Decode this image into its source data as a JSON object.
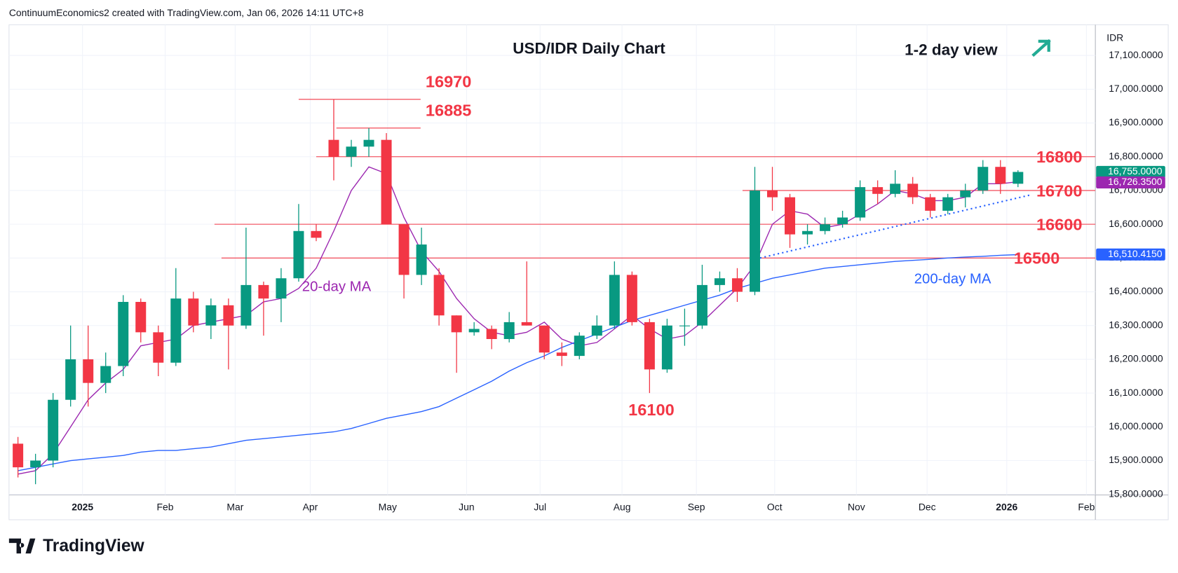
{
  "header": "ContinuumEconomics2 created with TradingView.com, Jan 06, 2026 14:11 UTC+8",
  "logo": "TradingView",
  "chart_data": {
    "type": "candlestick",
    "title": "USD/IDR Daily Chart",
    "subtitle": "1-2 day view",
    "y_axis_label": "IDR",
    "up_color": "#089981",
    "down_color": "#f23645",
    "grid": true,
    "categories": [
      null,
      null,
      null,
      null,
      null,
      null,
      null,
      null,
      null,
      null,
      null,
      null,
      null,
      null,
      null,
      null,
      null,
      null,
      null,
      null,
      null,
      null,
      null,
      null,
      null,
      null,
      null,
      null,
      null,
      null,
      null,
      null,
      null,
      null,
      null,
      null,
      null,
      null,
      null,
      null,
      null,
      null,
      null,
      null,
      null,
      null,
      null,
      null,
      null,
      null,
      null,
      null,
      null,
      null,
      null,
      null,
      null,
      null
    ],
    "candles": [
      [
        15950,
        15970,
        15850,
        15880
      ],
      [
        15880,
        15920,
        15830,
        15900
      ],
      [
        15900,
        16100,
        15880,
        16080
      ],
      [
        16080,
        16300,
        16060,
        16200
      ],
      [
        16200,
        16300,
        16060,
        16130
      ],
      [
        16130,
        16220,
        16100,
        16180
      ],
      [
        16180,
        16390,
        16150,
        16370
      ],
      [
        16370,
        16380,
        16250,
        16280
      ],
      [
        16280,
        16300,
        16150,
        16190
      ],
      [
        16190,
        16470,
        16180,
        16380
      ],
      [
        16380,
        16400,
        16280,
        16300
      ],
      [
        16300,
        16380,
        16260,
        16360
      ],
      [
        16360,
        16380,
        16170,
        16300
      ],
      [
        16300,
        16590,
        16290,
        16420
      ],
      [
        16420,
        16430,
        16270,
        16380
      ],
      [
        16380,
        16470,
        16310,
        16440
      ],
      [
        16440,
        16660,
        16430,
        16580
      ],
      [
        16580,
        16600,
        16550,
        16560
      ],
      [
        16850,
        16970,
        16730,
        16800
      ],
      [
        16800,
        16850,
        16770,
        16830
      ],
      [
        16830,
        16885,
        16800,
        16850
      ],
      [
        16850,
        16870,
        16600,
        16600
      ],
      [
        16600,
        16600,
        16380,
        16450
      ],
      [
        16450,
        16590,
        16420,
        16540
      ],
      [
        16450,
        16470,
        16300,
        16330
      ],
      [
        16330,
        16330,
        16160,
        16280
      ],
      [
        16280,
        16310,
        16270,
        16290
      ],
      [
        16290,
        16300,
        16230,
        16260
      ],
      [
        16260,
        16340,
        16250,
        16310
      ],
      [
        16310,
        16490,
        16300,
        16300
      ],
      [
        16300,
        16300,
        16200,
        16220
      ],
      [
        16220,
        16250,
        16180,
        16210
      ],
      [
        16210,
        16280,
        16200,
        16270
      ],
      [
        16270,
        16330,
        16260,
        16300
      ],
      [
        16300,
        16490,
        16290,
        16450
      ],
      [
        16450,
        16460,
        16300,
        16310
      ],
      [
        16310,
        16320,
        16100,
        16170
      ],
      [
        16170,
        16320,
        16160,
        16300
      ],
      [
        16300,
        16350,
        16240,
        16300
      ],
      [
        16300,
        16480,
        16290,
        16420
      ],
      [
        16420,
        16460,
        16400,
        16440
      ],
      [
        16440,
        16470,
        16370,
        16400
      ],
      [
        16400,
        16770,
        16390,
        16700
      ],
      [
        16700,
        16770,
        16640,
        16680
      ],
      [
        16680,
        16690,
        16530,
        16570
      ],
      [
        16570,
        16600,
        16540,
        16580
      ],
      [
        16580,
        16620,
        16570,
        16600
      ],
      [
        16600,
        16640,
        16590,
        16620
      ],
      [
        16620,
        16730,
        16610,
        16710
      ],
      [
        16710,
        16730,
        16660,
        16690
      ],
      [
        16690,
        16760,
        16680,
        16720
      ],
      [
        16720,
        16740,
        16660,
        16680
      ],
      [
        16680,
        16690,
        16620,
        16640
      ],
      [
        16640,
        16690,
        16630,
        16680
      ],
      [
        16680,
        16720,
        16650,
        16700
      ],
      [
        16700,
        16790,
        16690,
        16770
      ],
      [
        16770,
        16790,
        16690,
        16720
      ],
      [
        16720,
        16760,
        16710,
        16755
      ]
    ],
    "series": [
      {
        "name": "20-day MA",
        "color": "#9c27b0",
        "values": [
          15860,
          15870,
          15920,
          16000,
          16080,
          16130,
          16170,
          16240,
          16250,
          16260,
          16300,
          16310,
          16320,
          16330,
          16370,
          16380,
          16410,
          16470,
          16580,
          16700,
          16770,
          16750,
          16620,
          16520,
          16460,
          16380,
          16320,
          16280,
          16270,
          16280,
          16310,
          16260,
          16240,
          16250,
          16290,
          16330,
          16290,
          16260,
          16270,
          16310,
          16360,
          16410,
          16480,
          16600,
          16640,
          16630,
          16590,
          16600,
          16630,
          16660,
          16700,
          16690,
          16670,
          16670,
          16680,
          16720,
          16720,
          16726
        ]
      },
      {
        "name": "200-day MA",
        "color": "#2962ff",
        "values": [
          15870,
          15880,
          15890,
          15900,
          15905,
          15910,
          15915,
          15925,
          15930,
          15930,
          15935,
          15940,
          15950,
          15960,
          15965,
          15970,
          15975,
          15980,
          15985,
          15995,
          16010,
          16025,
          16035,
          16045,
          16060,
          16085,
          16110,
          16135,
          16165,
          16190,
          16210,
          16235,
          16255,
          16275,
          16295,
          16315,
          16330,
          16345,
          16360,
          16375,
          16390,
          16410,
          16425,
          16440,
          16450,
          16460,
          16470,
          16475,
          16480,
          16485,
          16490,
          16493,
          16496,
          16500,
          16503,
          16505,
          16508,
          16510
        ]
      }
    ],
    "levels": [
      16970,
      16885,
      16800,
      16700,
      16600,
      16500
    ],
    "annotation": 16100,
    "trendline": [
      16494,
      16686
    ],
    "price_labels": [
      {
        "value": 16755,
        "label": "16,755.0000",
        "color": "#089981"
      },
      {
        "value": 16726.35,
        "label": "16,726.3500",
        "color": "#9c27b0"
      },
      {
        "value": 16510.415,
        "label": "16,510.4150",
        "color": "#2962ff"
      }
    ],
    "xlim": [
      -0.51,
      61.41
    ],
    "xticks": [
      {
        "value": 3.68,
        "label": "2025"
      },
      {
        "value": 8.39,
        "label": "Feb"
      },
      {
        "value": 12.38,
        "label": "Mar"
      },
      {
        "value": 16.66,
        "label": "Apr"
      },
      {
        "value": 21.07,
        "label": "May"
      },
      {
        "value": 25.57,
        "label": "Jun"
      },
      {
        "value": 29.76,
        "label": "Jul"
      },
      {
        "value": 34.43,
        "label": "Aug"
      },
      {
        "value": 38.67,
        "label": "Sep"
      },
      {
        "value": 43.13,
        "label": "Oct"
      },
      {
        "value": 47.79,
        "label": "Nov"
      },
      {
        "value": 51.82,
        "label": "Dec"
      },
      {
        "value": 56.36,
        "label": "2026"
      },
      {
        "value": 60.9,
        "label": "Feb"
      }
    ],
    "ylim": [
      15798,
      17191
    ],
    "yticks": [
      {
        "value": 15800,
        "label": "15,800.0000"
      },
      {
        "value": 15900,
        "label": "15,900.0000"
      },
      {
        "value": 16000,
        "label": "16,000.0000"
      },
      {
        "value": 16100,
        "label": "16,100.0000"
      },
      {
        "value": 16200,
        "label": "16,200.0000"
      },
      {
        "value": 16300,
        "label": "16,300.0000"
      },
      {
        "value": 16400,
        "label": "16,400.0000"
      },
      {
        "value": 16500,
        "label": "16,500.0000"
      },
      {
        "value": 16600,
        "label": "16,600.0000"
      },
      {
        "value": 16700,
        "label": "16,700.0000"
      },
      {
        "value": 16800,
        "label": "16,800.0000"
      },
      {
        "value": 16900,
        "label": "16,900.0000"
      },
      {
        "value": 17000,
        "label": "17,000.0000"
      },
      {
        "value": 17100,
        "label": "17,100.0000"
      }
    ]
  }
}
